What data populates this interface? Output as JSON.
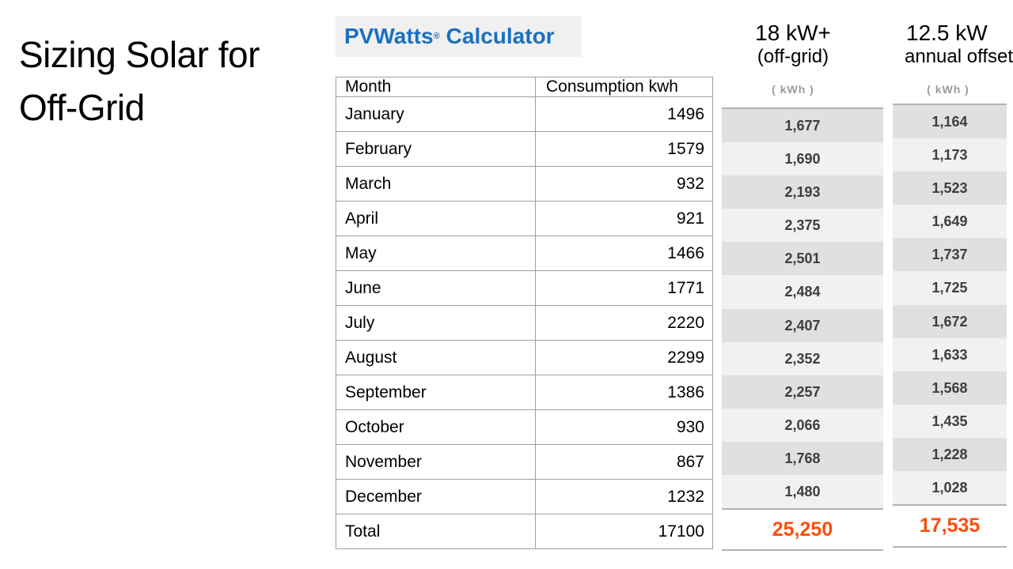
{
  "slide": {
    "title_line1": "Sizing Solar for",
    "title_line2": "Off-Grid"
  },
  "logo": {
    "brand": "PVWatts",
    "registered": "®",
    "product": "Calculator"
  },
  "consumption_table": {
    "headers": {
      "month": "Month",
      "consumption": "Consumption kwh"
    },
    "rows": [
      {
        "month": "January",
        "kwh": "1496"
      },
      {
        "month": "February",
        "kwh": "1579"
      },
      {
        "month": "March",
        "kwh": "932"
      },
      {
        "month": "April",
        "kwh": "921"
      },
      {
        "month": "May",
        "kwh": "1466"
      },
      {
        "month": "June",
        "kwh": "1771"
      },
      {
        "month": "July",
        "kwh": "2220"
      },
      {
        "month": "August",
        "kwh": "2299"
      },
      {
        "month": "September",
        "kwh": "1386"
      },
      {
        "month": "October",
        "kwh": "930"
      },
      {
        "month": "November",
        "kwh": "867"
      },
      {
        "month": "December",
        "kwh": "1232"
      }
    ],
    "total": {
      "label": "Total",
      "kwh": "17100"
    }
  },
  "offgrid_column": {
    "title": "18 kW+",
    "subtitle": "(off-grid)",
    "unit": "( kWh )",
    "values": [
      "1,677",
      "1,690",
      "2,193",
      "2,375",
      "2,501",
      "2,484",
      "2,407",
      "2,352",
      "2,257",
      "2,066",
      "1,768",
      "1,480"
    ],
    "total": "25,250"
  },
  "offset_column": {
    "title": "12.5 kW",
    "subtitle": "annual offset",
    "unit": "( kWh )",
    "values": [
      "1,164",
      "1,173",
      "1,523",
      "1,649",
      "1,737",
      "1,725",
      "1,672",
      "1,633",
      "1,568",
      "1,435",
      "1,228",
      "1,028"
    ],
    "total": "17,535"
  },
  "colors": {
    "logo_blue": "#1a6fc2",
    "total_orange": "#fd4d0c",
    "row_shade_dark": "#e0e0e0",
    "row_shade_light": "#f1f1f1",
    "table_border_gray": "#9e9e9e",
    "unit_label_gray": "#9b9b9b"
  }
}
